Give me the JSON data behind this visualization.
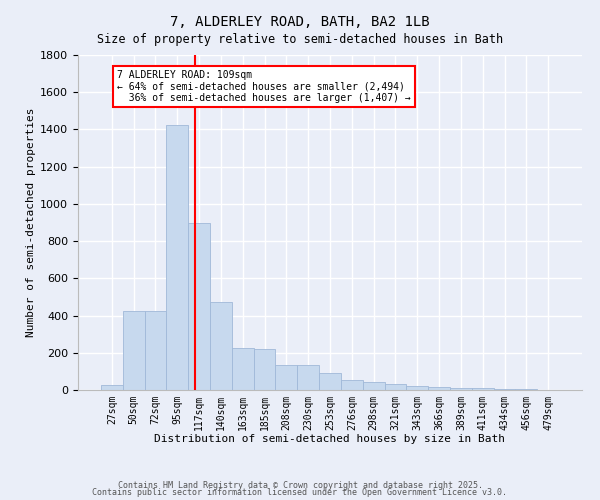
{
  "title_line1": "7, ALDERLEY ROAD, BATH, BA2 1LB",
  "title_line2": "Size of property relative to semi-detached houses in Bath",
  "xlabel": "Distribution of semi-detached houses by size in Bath",
  "ylabel": "Number of semi-detached properties",
  "bar_labels": [
    "27sqm",
    "50sqm",
    "72sqm",
    "95sqm",
    "117sqm",
    "140sqm",
    "163sqm",
    "185sqm",
    "208sqm",
    "230sqm",
    "253sqm",
    "276sqm",
    "298sqm",
    "321sqm",
    "343sqm",
    "366sqm",
    "389sqm",
    "411sqm",
    "434sqm",
    "456sqm",
    "479sqm"
  ],
  "bar_values": [
    25,
    425,
    425,
    1425,
    900,
    475,
    225,
    220,
    135,
    135,
    90,
    55,
    45,
    30,
    20,
    15,
    10,
    10,
    5,
    5,
    2
  ],
  "bar_color": "#c7d9ee",
  "bar_edge_color": "#a0b8d8",
  "red_line_x": 3.82,
  "annotation_text": "7 ALDERLEY ROAD: 109sqm\n← 64% of semi-detached houses are smaller (2,494)\n  36% of semi-detached houses are larger (1,407) →",
  "annotation_box_color": "white",
  "annotation_box_edge": "red",
  "ylim": [
    0,
    1800
  ],
  "yticks": [
    0,
    200,
    400,
    600,
    800,
    1000,
    1200,
    1400,
    1600,
    1800
  ],
  "background_color": "#eaeef8",
  "grid_color": "white",
  "footer_line1": "Contains HM Land Registry data © Crown copyright and database right 2025.",
  "footer_line2": "Contains public sector information licensed under the Open Government Licence v3.0."
}
